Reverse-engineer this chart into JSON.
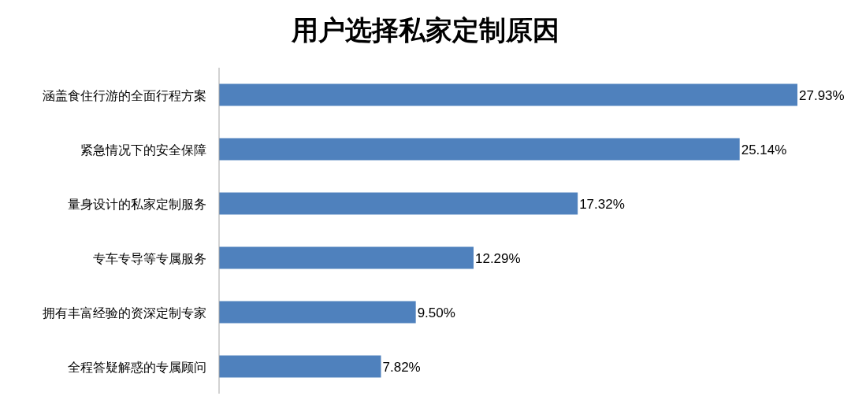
{
  "chart_data": {
    "type": "bar",
    "orientation": "horizontal",
    "title": "用户选择私家定制原因",
    "categories": [
      "涵盖食住行游的全面行程方案",
      "紧急情况下的安全保障",
      "量身设计的私家定制服务",
      "专车专导等专属服务",
      "拥有丰富经验的资深定制专家",
      "全程答疑解惑的专属顾问"
    ],
    "values": [
      27.93,
      25.14,
      17.32,
      12.29,
      9.5,
      7.82
    ],
    "value_labels": [
      "27.93%",
      "25.14%",
      "17.32%",
      "12.29%",
      "9.50%",
      "7.82%"
    ],
    "color": "#4f81bd"
  }
}
